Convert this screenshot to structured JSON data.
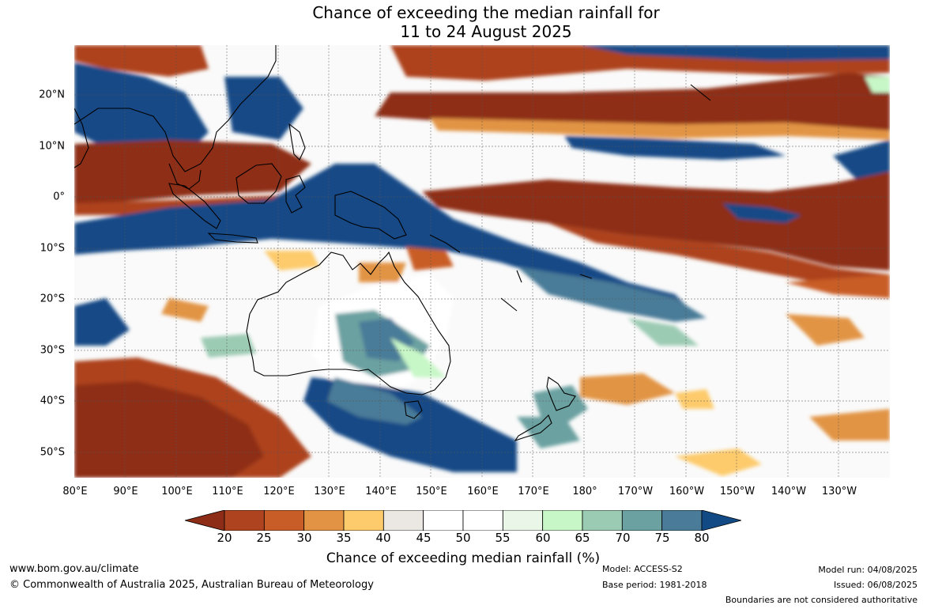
{
  "title": {
    "line1": "Chance of exceeding the median rainfall for",
    "line2": "11 to 24 August 2025"
  },
  "map": {
    "lat_labels": [
      "20°N",
      "10°N",
      "0°",
      "10°S",
      "20°S",
      "30°S",
      "40°S",
      "50°S"
    ],
    "lon_labels": [
      "80°E",
      "90°E",
      "100°E",
      "110°E",
      "120°E",
      "130°E",
      "140°E",
      "150°E",
      "160°E",
      "170°E",
      "180°",
      "170°W",
      "160°W",
      "150°W",
      "140°W",
      "130°W"
    ],
    "region": "Indo-Pacific, 80°E–120°W, 30°N–55°S"
  },
  "colorbar": {
    "ticks": [
      "20",
      "25",
      "30",
      "35",
      "40",
      "45",
      "50",
      "55",
      "60",
      "65",
      "70",
      "75",
      "80"
    ],
    "colors": [
      "#8e2d17",
      "#ad431f",
      "#c95d27",
      "#e29444",
      "#fdcb6c",
      "#ebe8e3",
      "#ffffff",
      "#ffffff",
      "#eaf7e8",
      "#c7f7c7",
      "#9ccbb4",
      "#6ca1a1",
      "#4a7b98",
      "#124a86"
    ],
    "label": "Chance of exceeding median rainfall (%)"
  },
  "footer": {
    "website": "www.bom.gov.au/climate",
    "copyright": "© Commonwealth of Australia 2025, Australian Bureau of Meteorology",
    "model": "Model: ACCESS-S2",
    "base_period": "Base period: 1981-2018",
    "model_run": "Model run: 04/08/2025",
    "issued": "Issued: 06/08/2025",
    "disclaimer": "Boundaries are not considered authoritative"
  }
}
